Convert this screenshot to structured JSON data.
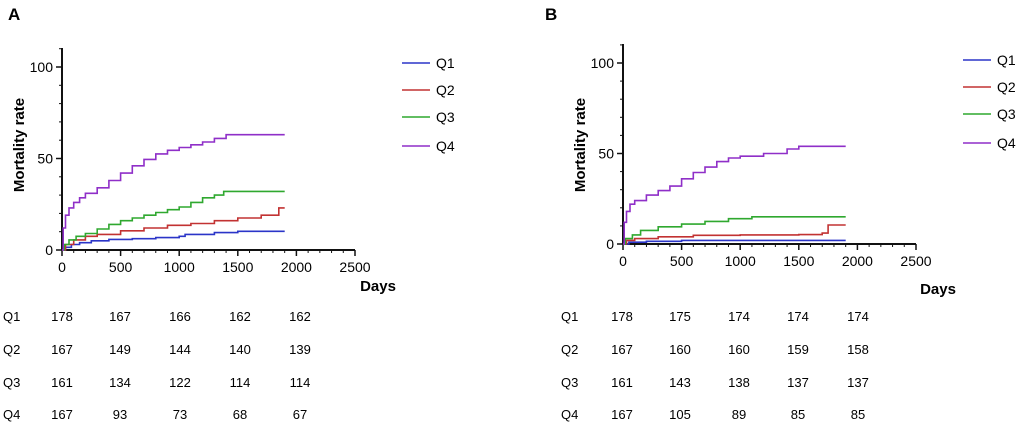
{
  "chart_data": [
    {
      "type": "line",
      "panel_label": "A",
      "xlabel": "Days",
      "ylabel": "Mortality rate",
      "xlim": [
        0,
        2500
      ],
      "ylim": [
        0,
        110
      ],
      "xticks": [
        "0",
        "500",
        "1000",
        "1500",
        "2000",
        "2500"
      ],
      "yticks": [
        "0",
        "50",
        "100"
      ],
      "legend_position": "top-right",
      "series": [
        {
          "name": "Q1",
          "color": "#2b35c8",
          "x": [
            0,
            30,
            80,
            150,
            250,
            400,
            600,
            800,
            1000,
            1050,
            1300,
            1500,
            1900
          ],
          "y": [
            0,
            1.5,
            3,
            4,
            5,
            5.8,
            6.2,
            6.8,
            7.5,
            8.5,
            9.5,
            10.2,
            10.2
          ]
        },
        {
          "name": "Q2",
          "color": "#c23232",
          "x": [
            0,
            30,
            100,
            200,
            300,
            500,
            700,
            900,
            1100,
            1300,
            1500,
            1700,
            1850,
            1900
          ],
          "y": [
            0,
            3,
            5.5,
            7.5,
            8.5,
            10.5,
            12,
            13.5,
            14.5,
            16,
            17.5,
            19,
            23,
            23
          ]
        },
        {
          "name": "Q3",
          "color": "#2fa82f",
          "x": [
            0,
            20,
            60,
            120,
            200,
            300,
            400,
            500,
            600,
            700,
            800,
            900,
            1000,
            1100,
            1200,
            1300,
            1380,
            1900
          ],
          "y": [
            0,
            3,
            5.5,
            7.5,
            9,
            11.5,
            14,
            16,
            17.5,
            19,
            20.5,
            22,
            23.5,
            26,
            28.5,
            30,
            32,
            32
          ]
        },
        {
          "name": "Q4",
          "color": "#8f2fc8",
          "x": [
            0,
            10,
            30,
            60,
            100,
            150,
            200,
            300,
            400,
            500,
            600,
            700,
            800,
            900,
            1000,
            1100,
            1200,
            1300,
            1400,
            1900
          ],
          "y": [
            0,
            12,
            19,
            23,
            26,
            28.5,
            31,
            34,
            38,
            42,
            46,
            49.5,
            52.5,
            54.5,
            56,
            57.5,
            59,
            61,
            63,
            63
          ]
        }
      ],
      "risk_table": {
        "rows": [
          {
            "label": "Q1",
            "values": [
              "178",
              "167",
              "166",
              "162",
              "162"
            ]
          },
          {
            "label": "Q2",
            "values": [
              "167",
              "149",
              "144",
              "140",
              "139"
            ]
          },
          {
            "label": "Q3",
            "values": [
              "161",
              "134",
              "122",
              "114",
              "114"
            ]
          },
          {
            "label": "Q4",
            "values": [
              "167",
              "93",
              "73",
              "68",
              "67"
            ]
          }
        ]
      }
    },
    {
      "type": "line",
      "panel_label": "B",
      "xlabel": "Days",
      "ylabel": "Mortality rate",
      "xlim": [
        0,
        2500
      ],
      "ylim": [
        0,
        110
      ],
      "xticks": [
        "0",
        "500",
        "1000",
        "1500",
        "2000",
        "2500"
      ],
      "yticks": [
        "0",
        "50",
        "100"
      ],
      "legend_position": "top-right",
      "series": [
        {
          "name": "Q1",
          "color": "#2b35c8",
          "x": [
            0,
            50,
            200,
            500,
            1900
          ],
          "y": [
            0,
            1,
            1.5,
            2,
            2
          ]
        },
        {
          "name": "Q2",
          "color": "#c23232",
          "x": [
            0,
            30,
            100,
            300,
            600,
            1000,
            1500,
            1700,
            1750,
            1900
          ],
          "y": [
            0,
            2,
            3,
            4,
            4.8,
            5,
            5.2,
            6,
            10.5,
            10.5
          ]
        },
        {
          "name": "Q3",
          "color": "#2fa82f",
          "x": [
            0,
            20,
            80,
            150,
            300,
            500,
            700,
            900,
            1100,
            1900
          ],
          "y": [
            0,
            3,
            5,
            7.5,
            9.5,
            11,
            12.5,
            14,
            15,
            15
          ]
        },
        {
          "name": "Q4",
          "color": "#8f2fc8",
          "x": [
            0,
            10,
            30,
            60,
            100,
            200,
            300,
            400,
            500,
            600,
            700,
            800,
            900,
            1000,
            1200,
            1400,
            1500,
            1900
          ],
          "y": [
            0,
            12,
            18,
            22,
            24,
            27,
            29.5,
            32,
            36,
            39.5,
            42.5,
            45.5,
            47.5,
            48.5,
            50,
            52.5,
            54,
            54
          ]
        }
      ],
      "risk_table": {
        "rows": [
          {
            "label": "Q1",
            "values": [
              "178",
              "175",
              "174",
              "174",
              "174"
            ]
          },
          {
            "label": "Q2",
            "values": [
              "167",
              "160",
              "160",
              "159",
              "158"
            ]
          },
          {
            "label": "Q3",
            "values": [
              "161",
              "143",
              "138",
              "137",
              "137"
            ]
          },
          {
            "label": "Q4",
            "values": [
              "167",
              "105",
              "89",
              "85",
              "85"
            ]
          }
        ]
      }
    }
  ]
}
